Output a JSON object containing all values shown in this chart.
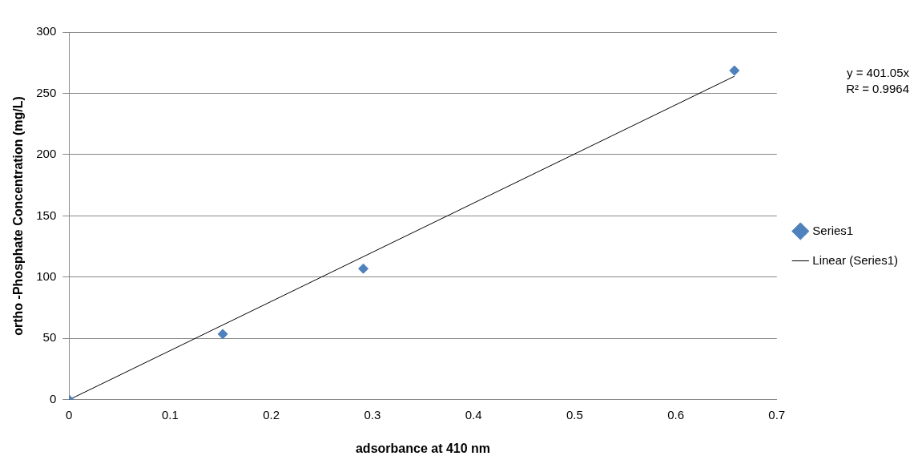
{
  "chart_data": {
    "type": "scatter",
    "xlabel": "adsorbance at 410 nm",
    "ylabel": "ortho -Phosphate Concentration (mg/L)",
    "xlim": [
      0,
      0.7
    ],
    "xticks": [
      0,
      0.1,
      0.2,
      0.3,
      0.4,
      0.5,
      0.6,
      0.7
    ],
    "ylim": [
      0,
      300
    ],
    "yticks": [
      0,
      50,
      100,
      150,
      200,
      250,
      300
    ],
    "grid": "y",
    "legend": "right",
    "annotations": [
      "y = 401.05x",
      "R² = 0.9964"
    ],
    "series": [
      {
        "name": "Series1",
        "type": "scatter",
        "marker": "diamond",
        "color": "#4f81bd",
        "x": [
          0,
          0.152,
          0.291,
          0.658
        ],
        "values": [
          0,
          53.6,
          107,
          268.6
        ]
      },
      {
        "name": "Linear (Series1)",
        "type": "line",
        "marker": "none",
        "color": "#000000",
        "x": [
          0,
          0.658
        ],
        "values": [
          0,
          263.9
        ]
      }
    ]
  }
}
